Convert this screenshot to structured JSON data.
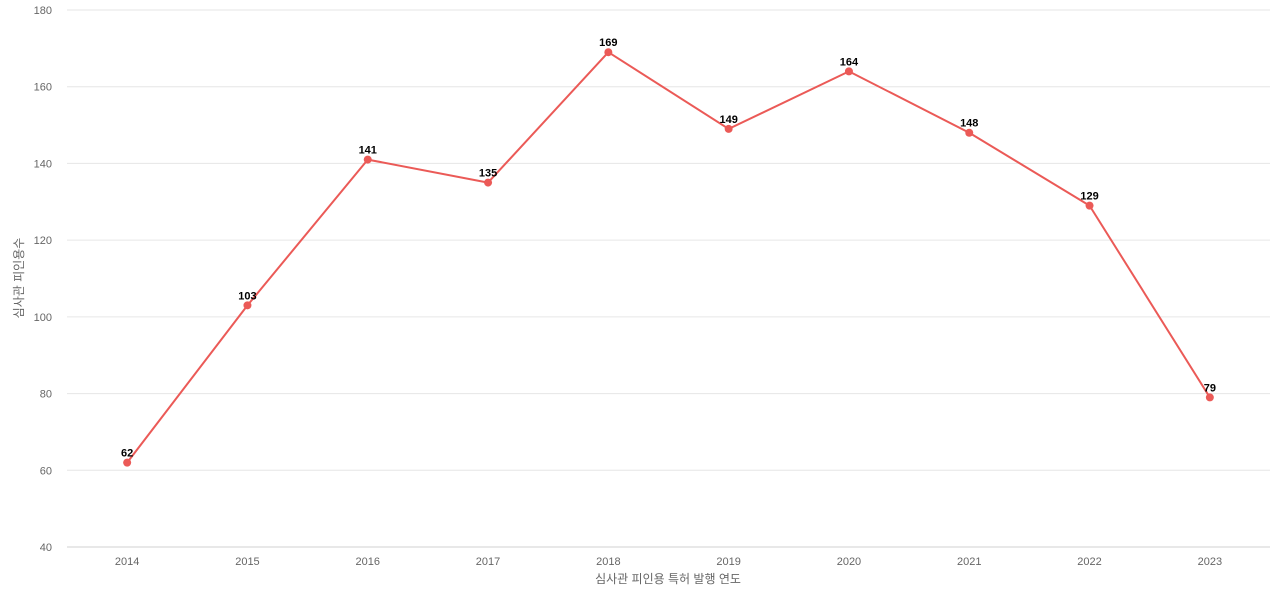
{
  "chart_data": {
    "type": "line",
    "title": "",
    "xlabel": "심사관 피인용 특허 발행 연도",
    "ylabel": "심사관 피인용수",
    "categories": [
      "2014",
      "2015",
      "2016",
      "2017",
      "2018",
      "2019",
      "2020",
      "2021",
      "2022",
      "2023"
    ],
    "series": [
      {
        "values": [
          62,
          103,
          141,
          135,
          169,
          149,
          164,
          148,
          129,
          79
        ],
        "color": "#eb5a57"
      }
    ],
    "ylim": [
      40,
      180
    ],
    "yticks": [
      40,
      60,
      80,
      100,
      120,
      140,
      160,
      180
    ],
    "grid": true,
    "legend": "none",
    "data_labels": true
  }
}
